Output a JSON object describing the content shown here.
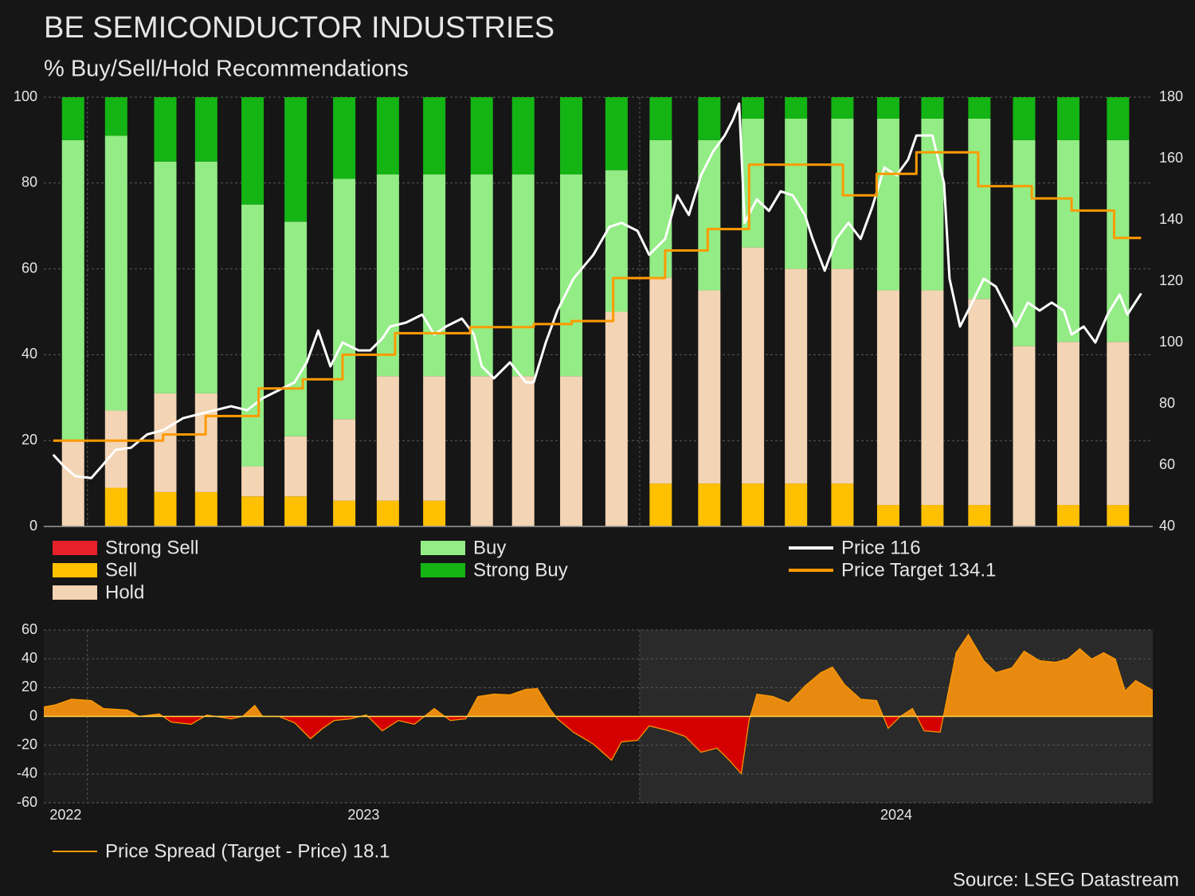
{
  "chart_data": [
    {
      "type": "bar",
      "stacked": true,
      "title": "BE SEMICONDUCTOR INDUSTRIES",
      "subtitle": "% Buy/Sell/Hold Recommendations",
      "x": [
        2022.974,
        2023.052,
        2023.141,
        2023.215,
        2023.299,
        2023.377,
        2023.465,
        2023.544,
        2023.628,
        2023.714,
        2023.789,
        2023.876,
        2023.958,
        2024.038,
        2024.126,
        2024.205,
        2024.283,
        2024.367,
        2024.45,
        2024.53,
        2024.615,
        2024.696,
        2024.776,
        2024.866
      ],
      "xlim": [
        2022.921,
        2024.929
      ],
      "ylim": [
        0,
        100
      ],
      "yticks": [
        0,
        20,
        40,
        60,
        80,
        100
      ],
      "y2lim": [
        40,
        180
      ],
      "y2ticks": [
        40,
        60,
        80,
        100,
        120,
        140,
        160,
        180
      ],
      "grid": true,
      "series": [
        {
          "name": "Strong Sell",
          "color": "#e8202a",
          "values": [
            0,
            0,
            0,
            0,
            0,
            0,
            0,
            0,
            0,
            0,
            0,
            0,
            0,
            0,
            0,
            0,
            0,
            0,
            0,
            0,
            0,
            0,
            0,
            0
          ]
        },
        {
          "name": "Sell",
          "color": "#ffc000",
          "values": [
            0,
            9,
            8,
            8,
            7,
            7,
            6,
            6,
            6,
            0,
            0,
            0,
            0,
            10,
            10,
            10,
            10,
            10,
            5,
            5,
            5,
            0,
            5,
            5
          ]
        },
        {
          "name": "Hold",
          "color": "#f3d4b4",
          "values": [
            20,
            18,
            23,
            23,
            7,
            14,
            19,
            29,
            29,
            35,
            35,
            35,
            50,
            48,
            45,
            55,
            50,
            50,
            50,
            50,
            48,
            42,
            38,
            38
          ]
        },
        {
          "name": "Buy",
          "color": "#93ec85",
          "values": [
            70,
            64,
            54,
            54,
            61,
            50,
            56,
            47,
            47,
            47,
            47,
            47,
            33,
            32,
            35,
            30,
            35,
            35,
            40,
            40,
            42,
            48,
            47,
            47
          ]
        },
        {
          "name": "Strong Buy",
          "color": "#14b414",
          "values": [
            10,
            9,
            15,
            15,
            25,
            29,
            19,
            18,
            18,
            18,
            18,
            18,
            17,
            10,
            10,
            5,
            5,
            5,
            5,
            5,
            5,
            10,
            10,
            10
          ]
        },
        {
          "name": "Price 116",
          "type": "line",
          "axis": "y2",
          "color": "#ffffff",
          "x": [
            2022.938,
            2022.957,
            2022.978,
            2023.007,
            2023.029,
            2023.051,
            2023.079,
            2023.108,
            2023.137,
            2023.173,
            2023.202,
            2023.231,
            2023.26,
            2023.289,
            2023.317,
            2023.346,
            2023.375,
            2023.397,
            2023.418,
            2023.44,
            2023.462,
            2023.491,
            2023.512,
            2023.534,
            2023.548,
            2023.577,
            2023.606,
            2023.628,
            2023.649,
            2023.678,
            2023.7,
            2023.714,
            2023.736,
            2023.765,
            2023.794,
            2023.808,
            2023.83,
            2023.851,
            2023.88,
            2023.916,
            2023.945,
            2023.967,
            2023.996,
            2024.017,
            2024.046,
            2024.068,
            2024.089,
            2024.111,
            2024.133,
            2024.154,
            2024.169,
            2024.18,
            2024.19,
            2024.212,
            2024.234,
            2024.255,
            2024.277,
            2024.299,
            2024.313,
            2024.335,
            2024.356,
            2024.378,
            2024.4,
            2024.421,
            2024.443,
            2024.465,
            2024.486,
            2024.501,
            2024.53,
            2024.551,
            2024.561,
            2024.58,
            2024.602,
            2024.623,
            2024.645,
            2024.667,
            2024.681,
            2024.703,
            2024.724,
            2024.746,
            2024.768,
            2024.782,
            2024.804,
            2024.825,
            2024.847,
            2024.869,
            2024.883,
            2024.908
          ],
          "values": [
            63.4,
            59.7,
            56.4,
            55.8,
            60.3,
            65,
            65.7,
            70,
            71.4,
            75.3,
            76.6,
            77.9,
            79.2,
            77.9,
            81.8,
            84.4,
            87,
            93.5,
            103.9,
            92.2,
            100,
            97.4,
            97.4,
            101.3,
            105.2,
            106.5,
            109.1,
            102.6,
            105.2,
            107.8,
            102.6,
            92.2,
            88.3,
            93.5,
            87,
            87,
            100,
            110.4,
            120.8,
            128.6,
            137.7,
            139,
            136.4,
            128.6,
            133.8,
            148,
            141.6,
            154.5,
            162.3,
            167.5,
            172.7,
            177.9,
            139,
            146.7,
            142.9,
            149.3,
            148,
            141.6,
            133.8,
            123.4,
            133.8,
            139,
            133.8,
            144.1,
            157.1,
            154.5,
            159.7,
            167.5,
            167.5,
            151.9,
            120.8,
            105.2,
            113,
            120.8,
            118.2,
            110.4,
            105.2,
            113,
            110.4,
            113,
            110.4,
            102.6,
            105.2,
            100,
            109.1,
            115.6,
            109.1,
            116
          ]
        },
        {
          "name": "Price Target 134.1",
          "type": "line",
          "axis": "y2",
          "color": "#ff9a00",
          "x": [
            2022.938,
            2023.137,
            2023.137,
            2023.214,
            2023.214,
            2023.31,
            2023.31,
            2023.39,
            2023.39,
            2023.462,
            2023.462,
            2023.557,
            2023.557,
            2023.693,
            2023.693,
            2023.808,
            2023.808,
            2023.877,
            2023.877,
            2023.952,
            2023.952,
            2024.046,
            2024.046,
            2024.123,
            2024.123,
            2024.198,
            2024.198,
            2024.368,
            2024.368,
            2024.429,
            2024.429,
            2024.501,
            2024.501,
            2024.613,
            2024.613,
            2024.71,
            2024.71,
            2024.782,
            2024.782,
            2024.859,
            2024.859,
            2024.908
          ],
          "values": [
            68,
            68,
            70,
            70,
            76,
            76,
            85,
            85,
            88,
            88,
            96,
            96,
            103,
            103,
            105,
            105,
            106,
            106,
            107,
            107,
            121,
            121,
            130,
            130,
            137,
            137,
            158,
            158,
            148,
            148,
            155,
            155,
            162,
            162,
            151,
            151,
            147,
            147,
            143,
            143,
            134.1,
            134.1
          ]
        }
      ]
    },
    {
      "type": "area",
      "x": [
        2022.921,
        2022.942,
        2022.971,
        2023.007,
        2023.029,
        2023.072,
        2023.094,
        2023.13,
        2023.152,
        2023.188,
        2023.216,
        2023.26,
        2023.281,
        2023.303,
        2023.317,
        2023.346,
        2023.375,
        2023.404,
        2023.426,
        2023.447,
        2023.476,
        2023.505,
        2023.534,
        2023.563,
        2023.592,
        2023.628,
        2023.657,
        2023.685,
        2023.707,
        2023.736,
        2023.765,
        2023.794,
        2023.815,
        2023.837,
        2023.851,
        2023.88,
        2023.916,
        2023.949,
        2023.967,
        2023.996,
        2024.017,
        2024.053,
        2024.082,
        2024.111,
        2024.14,
        2024.162,
        2024.184,
        2024.198,
        2024.212,
        2024.241,
        2024.27,
        2024.299,
        2024.328,
        2024.349,
        2024.371,
        2024.4,
        2024.429,
        2024.45,
        2024.472,
        2024.494,
        2024.515,
        2024.544,
        2024.558,
        2024.573,
        2024.595,
        2024.623,
        2024.645,
        2024.674,
        2024.696,
        2024.724,
        2024.753,
        2024.775,
        2024.797,
        2024.818,
        2024.84,
        2024.861,
        2024.879,
        2024.898,
        2024.929
      ],
      "xlim": [
        2022.921,
        2024.929
      ],
      "xticks": [
        2022,
        2023,
        2024
      ],
      "ylim": [
        -60,
        60
      ],
      "yticks": [
        -60,
        -40,
        -20,
        0,
        20,
        40,
        60
      ],
      "grid": true,
      "series": [
        {
          "name": "Price Spread (Target - Price) 18.1",
          "color": "#ff9a00",
          "positive_color": "#e88a10",
          "negative_color": "#d40000",
          "values": [
            6.6,
            8,
            12,
            11,
            5.5,
            4.4,
            0,
            1.7,
            -4,
            -5.5,
            1,
            -1.7,
            0,
            7.7,
            0,
            0,
            -4.4,
            -15.5,
            -8.3,
            -2.8,
            -1.7,
            1,
            -10,
            -2.8,
            -5.5,
            5.5,
            -2.8,
            -1.7,
            13.8,
            15.5,
            15,
            18.8,
            19.3,
            5.5,
            -1.7,
            -11,
            -19.3,
            -30.4,
            -17.7,
            -16.6,
            -6.6,
            -10,
            -13.8,
            -24.9,
            -22,
            -30.4,
            -39.8,
            -2.8,
            15.5,
            13.8,
            9.4,
            21,
            30.4,
            34.3,
            22,
            12,
            11,
            -8.3,
            0,
            5.5,
            -10,
            -11,
            15.5,
            44.2,
            56.9,
            38.7,
            30.4,
            33.7,
            45.3,
            38.7,
            37.6,
            39.8,
            47,
            39.8,
            44.2,
            39.8,
            17.7,
            24.9,
            18.1
          ]
        }
      ]
    }
  ],
  "source": "Source: LSEG Datastream"
}
